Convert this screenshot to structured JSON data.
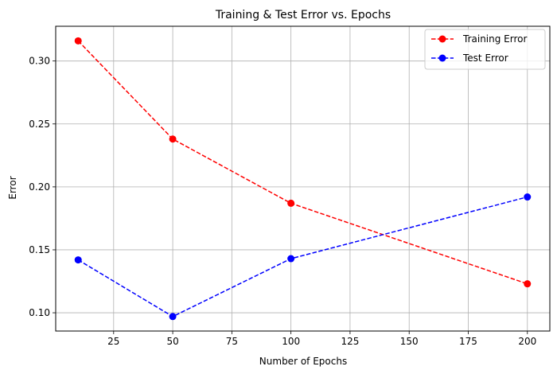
{
  "chart_data": {
    "type": "line",
    "title": "Training & Test Error vs. Epochs",
    "xlabel": "Number of Epochs",
    "ylabel": "Error",
    "x": [
      10,
      50,
      100,
      200
    ],
    "xlim": [
      0.5,
      209.5
    ],
    "ylim": [
      0.0855,
      0.3276
    ],
    "xticks": [
      25,
      50,
      75,
      100,
      125,
      150,
      175,
      200
    ],
    "xtick_labels": [
      "25",
      "50",
      "75",
      "100",
      "125",
      "150",
      "175",
      "200"
    ],
    "yticks": [
      0.1,
      0.15,
      0.2,
      0.25,
      0.3
    ],
    "ytick_labels": [
      "0.10",
      "0.15",
      "0.20",
      "0.25",
      "0.30"
    ],
    "grid": true,
    "legend_position": "top-right",
    "series": [
      {
        "name": "Training Error",
        "values": [
          0.316,
          0.238,
          0.187,
          0.123
        ],
        "color": "#ff0000",
        "line_style": "dashed",
        "marker": "circle"
      },
      {
        "name": "Test Error",
        "values": [
          0.142,
          0.097,
          0.143,
          0.192
        ],
        "color": "#0000ff",
        "line_style": "dashed",
        "marker": "circle"
      }
    ]
  }
}
